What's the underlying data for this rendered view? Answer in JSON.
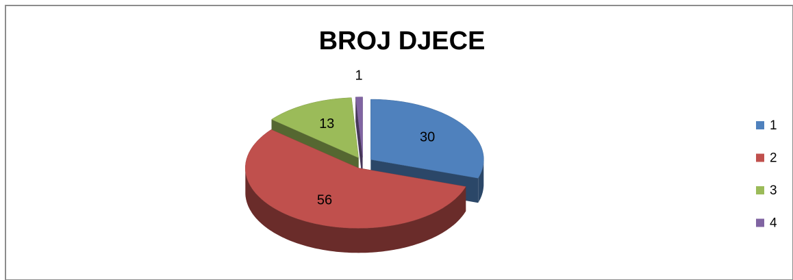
{
  "chart_data": {
    "type": "pie",
    "title": "BROJ DJECE",
    "categories": [
      "1",
      "2",
      "3",
      "4"
    ],
    "values": [
      30,
      56,
      13,
      1
    ],
    "colors": [
      "#4f81bd",
      "#c0504d",
      "#9bbb59",
      "#8064a2"
    ],
    "legend": "right"
  }
}
